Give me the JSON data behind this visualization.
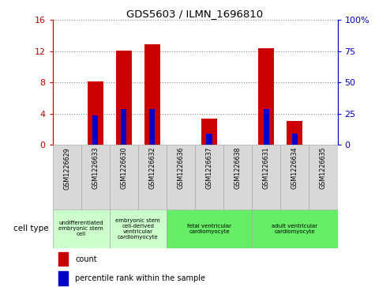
{
  "title": "GDS5603 / ILMN_1696810",
  "samples": [
    "GSM1226629",
    "GSM1226633",
    "GSM1226630",
    "GSM1226632",
    "GSM1226636",
    "GSM1226637",
    "GSM1226638",
    "GSM1226631",
    "GSM1226634",
    "GSM1226635"
  ],
  "count_values": [
    0,
    8.1,
    12.1,
    12.9,
    0,
    3.4,
    0,
    12.4,
    3.1,
    0
  ],
  "percentile_values": [
    0,
    23.8,
    28.6,
    28.6,
    0,
    8.9,
    0,
    28.6,
    8.9,
    0
  ],
  "ylim_left": [
    0,
    16
  ],
  "ylim_right": [
    0,
    100
  ],
  "yticks_left": [
    0,
    4,
    8,
    12,
    16
  ],
  "yticks_right": [
    0,
    25,
    50,
    75,
    100
  ],
  "yticklabels_right": [
    "0",
    "25",
    "50",
    "75",
    "100%"
  ],
  "left_axis_color": "#cc0000",
  "right_axis_color": "#0000cc",
  "bar_color": "#cc0000",
  "percentile_color": "#0000cc",
  "cell_type_groups": [
    {
      "label": "undifferentiated\nembryonic stem\ncell",
      "start": 0,
      "end": 2,
      "color": "#ccffcc"
    },
    {
      "label": "embryonic stem\ncell-derived\nventricular\ncardiomyocyte",
      "start": 2,
      "end": 4,
      "color": "#ccffcc"
    },
    {
      "label": "fetal ventricular\ncardiomyocyte",
      "start": 4,
      "end": 7,
      "color": "#66ee66"
    },
    {
      "label": "adult ventricular\ncardiomyocyte",
      "start": 7,
      "end": 10,
      "color": "#66ee66"
    }
  ],
  "cell_type_label": "cell type",
  "legend_count_label": "count",
  "legend_percentile_label": "percentile rank within the sample",
  "bar_width": 0.55,
  "percentile_bar_width": 0.2,
  "grid_color": "#888888",
  "sample_bg_color": "#d8d8d8",
  "plot_bg": "#ffffff",
  "figsize": [
    4.75,
    3.63
  ],
  "dpi": 100
}
